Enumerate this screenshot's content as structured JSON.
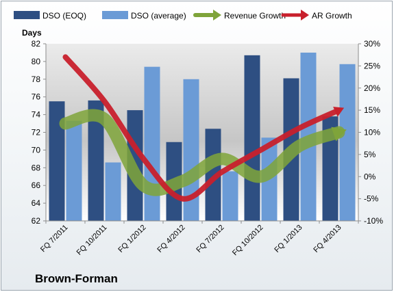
{
  "company_name": "Brown-Forman",
  "colors": {
    "dso_eoq": "#2e4f82",
    "dso_average": "#6b9bd6",
    "revenue_growth": "#7fa43a",
    "ar_growth": "#c8202c"
  },
  "chart_data": {
    "type": "bar",
    "categories": [
      "FQ 7/2011",
      "FQ 10/2011",
      "FQ 1/2012",
      "FQ 4/2012",
      "FQ 7/2012",
      "FQ 10/2012",
      "FQ 1/2013",
      "FQ 4/2013"
    ],
    "series": [
      {
        "name": "DSO (EOQ)",
        "type": "bar",
        "axis": "left",
        "values": [
          75.5,
          75.6,
          74.5,
          70.9,
          72.4,
          80.7,
          78.1,
          73.8
        ]
      },
      {
        "name": "DSO (average)",
        "type": "bar",
        "axis": "left",
        "values": [
          73.3,
          68.6,
          79.4,
          78.0,
          67.6,
          71.4,
          81.0,
          79.7
        ]
      },
      {
        "name": "Revenue Growth",
        "type": "line",
        "axis": "right",
        "values": [
          12,
          13,
          -2,
          -1,
          4,
          0,
          7,
          10
        ]
      },
      {
        "name": "AR Growth",
        "type": "line",
        "axis": "right",
        "values": [
          27,
          17,
          4,
          -5,
          1,
          6,
          11,
          15
        ]
      }
    ],
    "ylabel": "Days",
    "ylim": [
      62,
      82
    ],
    "yticks": [
      "62",
      "64",
      "66",
      "68",
      "70",
      "72",
      "74",
      "76",
      "78",
      "80",
      "82"
    ],
    "y2lim": [
      -10,
      30
    ],
    "y2ticks": [
      "-10%",
      "-5%",
      "0%",
      "5%",
      "10%",
      "15%",
      "20%",
      "25%",
      "30%"
    ],
    "legend_position": "top",
    "grid": false
  }
}
